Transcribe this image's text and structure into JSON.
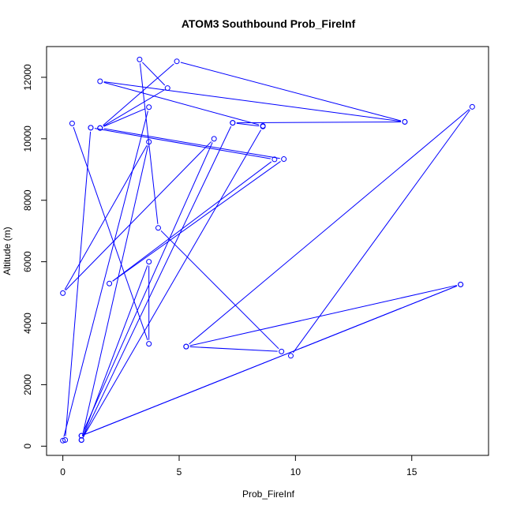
{
  "chart_data": {
    "type": "line",
    "title": "ATOM3 Southbound Prob_FireInf",
    "xlabel": "Prob_FireInf",
    "ylabel": "Altitude (m)",
    "xlim": [
      -0.7,
      18.3
    ],
    "ylim": [
      -300,
      13000
    ],
    "x_ticks": [
      0,
      5,
      10,
      15
    ],
    "y_ticks": [
      0,
      2000,
      4000,
      6000,
      8000,
      10000,
      12000
    ],
    "grid": false,
    "legend": "none",
    "marker": "open-circle",
    "color": "#0000ff",
    "series": [
      {
        "points": [
          [
            0.0,
            180
          ],
          [
            3.7,
            11030
          ],
          [
            1.6,
            10350
          ],
          [
            4.5,
            11650
          ],
          [
            3.3,
            12580
          ],
          [
            4.1,
            7100
          ],
          [
            9.4,
            3080
          ],
          [
            5.3,
            3240
          ],
          [
            17.1,
            5260
          ],
          [
            0.8,
            340
          ],
          [
            6.5,
            10000
          ],
          [
            0.0,
            4980
          ],
          [
            3.7,
            9900
          ],
          [
            0.8,
            200
          ],
          [
            8.6,
            10400
          ],
          [
            7.3,
            10520
          ],
          [
            14.7,
            10550
          ],
          [
            1.6,
            11870
          ],
          [
            8.6,
            10420
          ]
        ]
      },
      {
        "points": [
          [
            0.4,
            10500
          ],
          [
            3.7,
            3330
          ],
          [
            3.7,
            6000
          ],
          [
            0.8,
            200
          ],
          [
            7.3,
            10520
          ]
        ]
      },
      {
        "points": [
          [
            1.2,
            10360
          ],
          [
            0.1,
            200
          ]
        ]
      },
      {
        "points": [
          [
            1.2,
            10360
          ],
          [
            9.1,
            9330
          ],
          [
            2.0,
            5290
          ],
          [
            9.5,
            9340
          ],
          [
            1.6,
            10350
          ],
          [
            4.9,
            12520
          ],
          [
            14.7,
            10550
          ]
        ]
      },
      {
        "points": [
          [
            9.8,
            2940
          ],
          [
            17.6,
            11040
          ],
          [
            5.3,
            3240
          ]
        ]
      },
      {
        "points": [
          [
            0.8,
            340
          ],
          [
            17.1,
            5260
          ]
        ]
      }
    ]
  }
}
